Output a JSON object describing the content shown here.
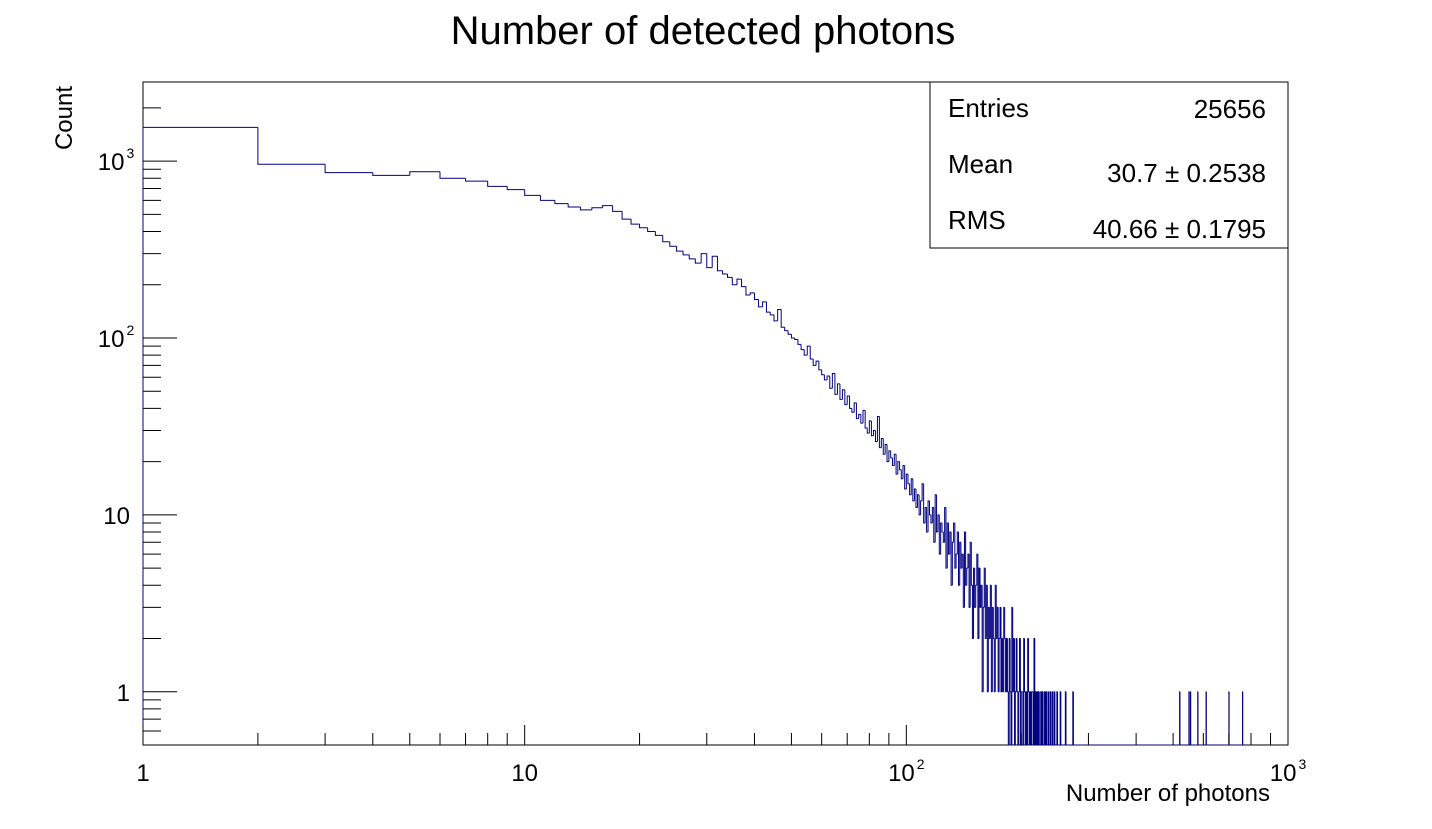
{
  "chart_data": {
    "type": "bar",
    "histogram_style": "step",
    "title": "Number of detected photons",
    "xlabel": "Number of photons",
    "ylabel": "Count",
    "x_scale": "log",
    "y_scale": "log",
    "xlim": [
      1,
      1000
    ],
    "ylim": [
      0.5,
      2800
    ],
    "x_tick_labels": [
      {
        "value": 1,
        "base": "1",
        "exp": ""
      },
      {
        "value": 10,
        "base": "10",
        "exp": ""
      },
      {
        "value": 100,
        "base": "10",
        "exp": "2"
      },
      {
        "value": 1000,
        "base": "10",
        "exp": "3"
      }
    ],
    "y_tick_labels": [
      {
        "value": 1,
        "base": "1",
        "exp": ""
      },
      {
        "value": 10,
        "base": "10",
        "exp": ""
      },
      {
        "value": 100,
        "base": "10",
        "exp": "2"
      },
      {
        "value": 1000,
        "base": "10",
        "exp": "3"
      }
    ],
    "line_color": "#000080",
    "bin_width": 1,
    "bin_start": 1,
    "series": [
      {
        "values": [
          1550,
          960,
          860,
          830,
          870,
          800,
          770,
          720,
          690,
          640,
          600,
          575,
          550,
          530,
          545,
          560,
          520,
          470,
          440,
          420,
          400,
          380,
          350,
          330,
          310,
          295,
          280,
          265,
          300,
          250,
          290,
          240,
          230,
          220,
          200,
          215,
          195,
          175,
          180,
          165,
          150,
          160,
          140,
          135,
          125,
          145,
          115,
          110,
          105,
          100,
          98,
          92,
          86,
          80,
          90,
          76,
          70,
          74,
          66,
          62,
          58,
          61,
          52,
          63,
          48,
          55,
          45,
          51,
          42,
          47,
          40,
          38,
          43,
          35,
          37,
          33,
          39,
          31,
          29,
          34,
          28,
          30,
          26,
          36,
          24,
          27,
          22,
          25,
          20,
          23,
          21,
          19,
          22,
          17,
          20,
          18,
          16,
          19,
          14,
          17,
          15,
          13,
          16,
          12,
          14,
          11,
          13,
          10,
          12,
          15,
          9,
          11,
          8,
          12,
          10,
          9,
          11,
          7,
          13,
          8,
          10,
          6,
          9,
          8,
          7,
          11,
          5,
          9,
          6,
          8,
          4,
          7,
          9,
          5,
          6,
          8,
          4,
          7,
          5,
          6,
          3,
          8,
          4,
          5,
          6,
          3,
          7,
          4,
          2,
          5,
          3,
          4,
          6,
          2,
          5,
          3,
          4,
          1,
          3,
          5,
          2,
          4,
          1,
          3,
          2,
          4,
          1,
          3,
          2,
          1,
          4,
          2,
          3,
          1,
          2,
          3,
          1,
          2,
          1,
          3,
          2,
          1,
          2,
          1,
          0,
          2,
          1,
          0,
          3,
          1,
          2,
          0,
          1,
          2,
          1,
          0,
          1,
          2,
          0,
          1,
          1,
          0,
          2,
          1,
          0,
          1,
          0,
          2,
          1,
          0,
          1,
          0,
          1,
          1,
          0,
          2,
          0,
          1,
          0,
          1,
          0,
          1,
          0,
          0,
          1,
          0,
          1,
          0,
          0,
          1,
          0,
          1,
          0,
          0,
          1,
          0,
          0,
          1,
          0,
          0,
          1,
          0,
          0,
          1,
          0,
          0,
          0,
          1,
          0,
          0,
          0,
          0,
          1,
          0,
          0,
          0,
          0,
          0,
          0,
          0,
          1,
          0,
          0,
          0,
          0,
          0,
          0,
          0,
          0,
          0,
          0,
          0,
          1,
          0,
          0,
          0,
          0,
          0,
          0,
          0,
          0,
          0,
          0,
          0,
          0,
          0,
          0,
          0,
          0,
          0,
          0,
          0,
          0,
          0,
          0,
          0,
          0,
          0,
          0,
          0,
          0,
          0,
          0,
          0,
          0,
          0,
          0,
          0,
          0,
          0,
          0,
          0,
          0,
          0,
          0,
          0,
          0,
          0,
          0,
          0,
          0,
          0,
          0,
          0,
          0,
          0,
          0,
          0,
          0,
          0,
          0,
          0,
          0,
          0,
          0,
          0,
          0,
          0,
          0,
          0,
          0,
          0,
          0,
          0,
          0,
          0,
          0,
          0,
          0,
          0,
          0,
          0,
          0,
          0,
          0,
          0,
          0,
          0,
          0,
          0,
          0,
          0,
          0,
          0,
          0,
          0,
          0,
          0,
          0,
          0,
          0,
          0,
          0,
          0,
          0,
          0,
          0,
          0,
          0,
          0,
          0,
          0,
          0,
          0,
          0,
          0,
          0,
          0,
          0,
          0,
          0,
          0,
          0,
          0,
          0,
          0,
          0,
          0,
          0,
          0
        ]
      }
    ],
    "sparse_unit_bins": [
      520,
      550,
      555,
      580,
      610,
      700,
      760
    ],
    "stats_box": {
      "placement": "top-right",
      "rows": [
        {
          "label": "Entries",
          "value": "25656"
        },
        {
          "label": "Mean",
          "value": "30.7 ±  0.2538"
        },
        {
          "label": "RMS",
          "value": "40.66 ±  0.1795"
        }
      ]
    }
  }
}
